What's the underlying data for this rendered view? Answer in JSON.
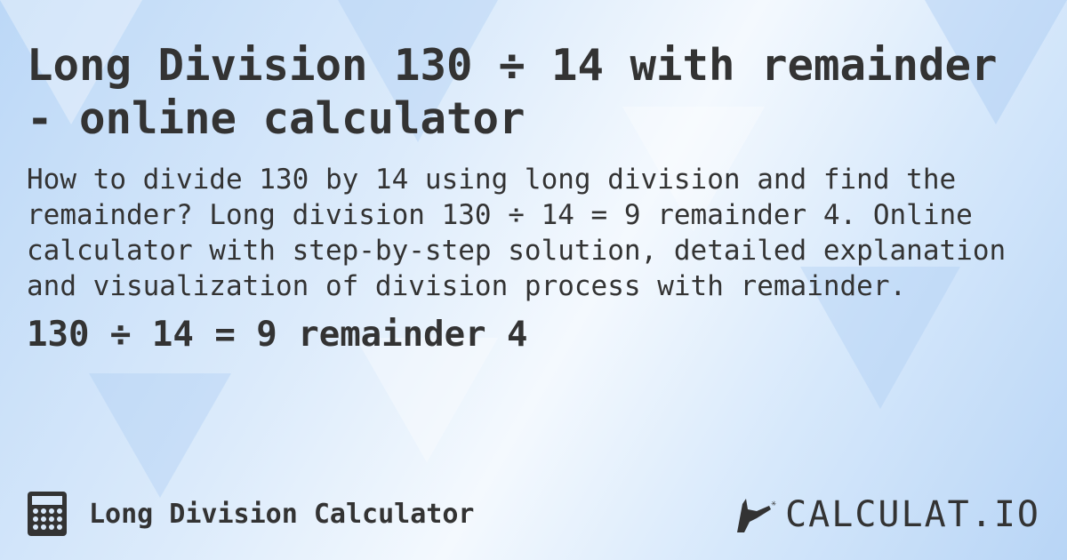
{
  "title": "Long Division 130 ÷ 14 with remainder - online calculator",
  "description": "How to divide 130 by 14 using long division and find the remainder? Long division 130 ÷ 14 = 9 remainder 4. Online calculator with step-by-step solution, detailed explanation and visualization of division process with remainder.",
  "result": "130 ÷ 14 = 9 remainder 4",
  "footer": {
    "icon": "calculator-icon",
    "label": "Long Division Calculator",
    "logo_text": "CALCULAT.IO"
  },
  "colors": {
    "text": "#333333",
    "background": "#cfe3f9"
  }
}
